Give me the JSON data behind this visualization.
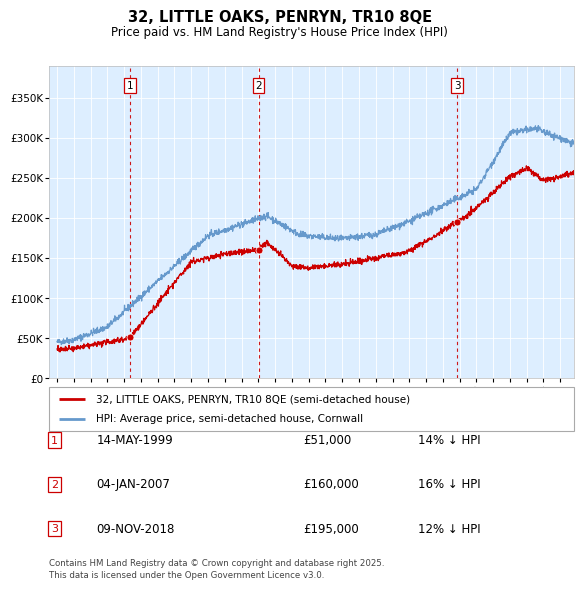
{
  "title": "32, LITTLE OAKS, PENRYN, TR10 8QE",
  "subtitle": "Price paid vs. HM Land Registry's House Price Index (HPI)",
  "legend_line1": "32, LITTLE OAKS, PENRYN, TR10 8QE (semi-detached house)",
  "legend_line2": "HPI: Average price, semi-detached house, Cornwall",
  "footer": "Contains HM Land Registry data © Crown copyright and database right 2025.\nThis data is licensed under the Open Government Licence v3.0.",
  "sale_color": "#cc0000",
  "hpi_color": "#6699cc",
  "background_color": "#ddeeff",
  "ylim": [
    0,
    390000
  ],
  "yticks": [
    0,
    50000,
    100000,
    150000,
    200000,
    250000,
    300000,
    350000
  ],
  "ytick_labels": [
    "£0",
    "£50K",
    "£100K",
    "£150K",
    "£200K",
    "£250K",
    "£300K",
    "£350K"
  ],
  "sale_dates": [
    1999.37,
    2007.01,
    2018.85
  ],
  "sale_prices": [
    51000,
    160000,
    195000
  ],
  "sale_labels": [
    "1",
    "2",
    "3"
  ],
  "sale_annotations": [
    [
      "1",
      "14-MAY-1999",
      "£51,000",
      "14% ↓ HPI"
    ],
    [
      "2",
      "04-JAN-2007",
      "£160,000",
      "16% ↓ HPI"
    ],
    [
      "3",
      "09-NOV-2018",
      "£195,000",
      "12% ↓ HPI"
    ]
  ],
  "vline_color": "#cc0000",
  "xmin": 1994.5,
  "xmax": 2025.8
}
